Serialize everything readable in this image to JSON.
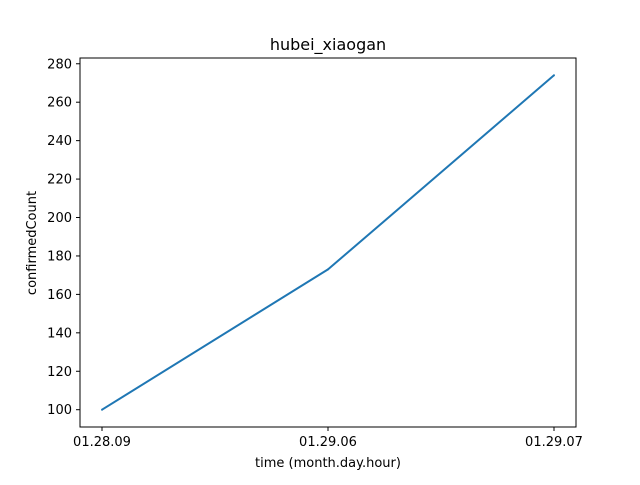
{
  "chart_data": {
    "type": "line",
    "title": "hubei_xiaogan",
    "xlabel": "time (month.day.hour)",
    "ylabel": "confirmedCount",
    "categories": [
      "01.28.09",
      "01.29.06",
      "01.29.07"
    ],
    "series": [
      {
        "values": [
          100,
          173,
          274
        ],
        "color": "#1f77b4"
      }
    ],
    "ylim": [
      91,
      283
    ],
    "yticks": [
      100,
      120,
      140,
      160,
      180,
      200,
      220,
      240,
      260,
      280
    ],
    "grid": false
  }
}
